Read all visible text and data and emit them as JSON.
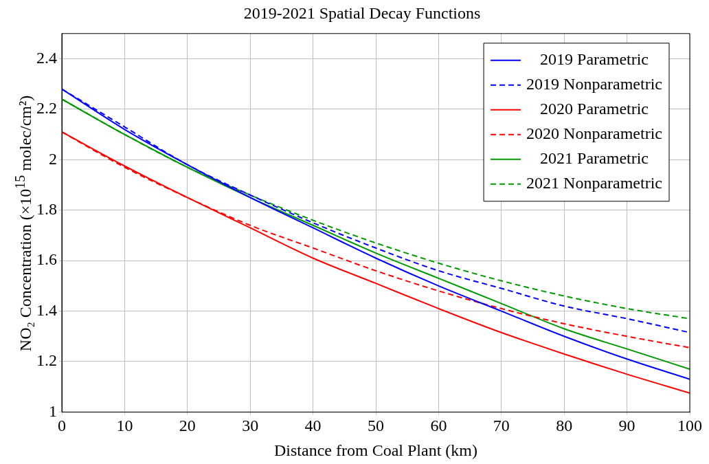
{
  "chart_data": {
    "type": "line",
    "title": "2019-2021 Spatial Decay Functions",
    "xlabel": "Distance from Coal Plant (km)",
    "ylabel": "NO₂ Concentration (×10$^{15}$ molec/cm²)",
    "x": [
      0,
      10,
      20,
      30,
      40,
      50,
      60,
      70,
      80,
      90,
      100
    ],
    "xlim": [
      0,
      100
    ],
    "xticks": [
      0,
      10,
      20,
      30,
      40,
      50,
      60,
      70,
      80,
      90,
      100
    ],
    "ylim": [
      1,
      2.5
    ],
    "yticks": [
      1,
      1.2,
      1.4,
      1.6,
      1.8,
      2,
      2.2,
      2.4
    ],
    "grid": true,
    "legend": "top right",
    "marker": "none",
    "series": [
      {
        "name": "2019 Parametric",
        "color": "#0000ff",
        "line_style": "solid",
        "values": [
          2.28,
          2.12,
          1.98,
          1.85,
          1.73,
          1.61,
          1.5,
          1.4,
          1.3,
          1.21,
          1.13
        ]
      },
      {
        "name": "2019 Nonparametric",
        "color": "#0000ff",
        "line_style": "dashed",
        "values": [
          2.28,
          2.13,
          1.98,
          1.86,
          1.75,
          1.65,
          1.56,
          1.49,
          1.42,
          1.37,
          1.315
        ]
      },
      {
        "name": "2020 Parametric",
        "color": "#ff0000",
        "line_style": "solid",
        "values": [
          2.11,
          1.975,
          1.85,
          1.73,
          1.61,
          1.51,
          1.41,
          1.315,
          1.23,
          1.15,
          1.075
        ]
      },
      {
        "name": "2020 Nonparametric",
        "color": "#ff0000",
        "line_style": "dashed",
        "values": [
          2.11,
          1.97,
          1.85,
          1.74,
          1.65,
          1.56,
          1.48,
          1.41,
          1.35,
          1.3,
          1.255
        ]
      },
      {
        "name": "2021 Parametric",
        "color": "#009900",
        "line_style": "solid",
        "values": [
          2.24,
          2.1,
          1.97,
          1.85,
          1.74,
          1.63,
          1.53,
          1.43,
          1.33,
          1.25,
          1.17
        ]
      },
      {
        "name": "2021 Nonparametric",
        "color": "#009900",
        "line_style": "dashed",
        "values": [
          2.24,
          2.1,
          1.97,
          1.86,
          1.76,
          1.67,
          1.59,
          1.52,
          1.46,
          1.41,
          1.37
        ]
      }
    ]
  }
}
